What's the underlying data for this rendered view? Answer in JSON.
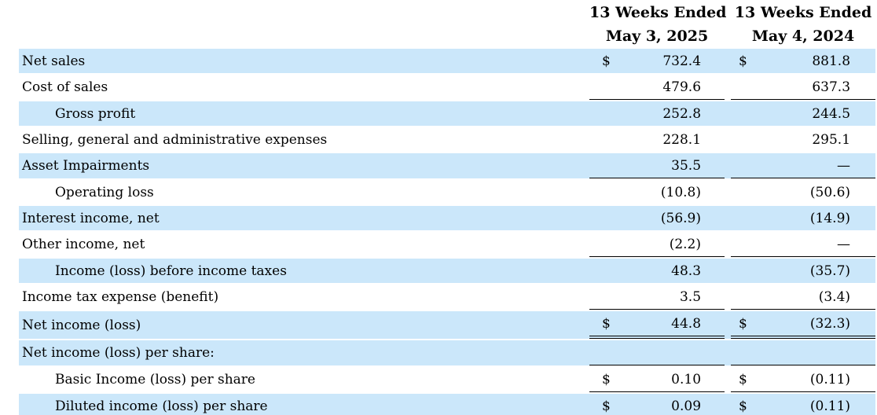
{
  "currency": "$",
  "colors": {
    "row_highlight": "#cbe7fa",
    "text": "#000000",
    "rule": "#000000"
  },
  "header": {
    "period1": {
      "line1": "13 Weeks Ended",
      "line2": "May 3, 2025"
    },
    "period2": {
      "line1": "13 Weeks Ended",
      "line2": "May 4, 2024"
    }
  },
  "rows": [
    {
      "label": "Net sales",
      "v2025": "732.4",
      "v2024": "881.8"
    },
    {
      "label": "Cost of sales",
      "v2025": "479.6",
      "v2024": "637.3"
    },
    {
      "label": "Gross profit",
      "v2025": "252.8",
      "v2024": "244.5"
    },
    {
      "label": "Selling, general and administrative expenses",
      "v2025": "228.1",
      "v2024": "295.1"
    },
    {
      "label": "Asset Impairments",
      "v2025": "35.5",
      "v2024": "—"
    },
    {
      "label": "Operating loss",
      "v2025": "(10.8)",
      "v2024": "(50.6)"
    },
    {
      "label": "Interest income, net",
      "v2025": "(56.9)",
      "v2024": "(14.9)"
    },
    {
      "label": "Other income, net",
      "v2025": "(2.2)",
      "v2024": "—"
    },
    {
      "label": "Income (loss) before income taxes",
      "v2025": "48.3",
      "v2024": "(35.7)"
    },
    {
      "label": "Income tax expense (benefit)",
      "v2025": "3.5",
      "v2024": "(3.4)"
    },
    {
      "label": "Net income (loss)",
      "v2025": "44.8",
      "v2024": "(32.3)"
    },
    {
      "label": "Net income (loss) per share:",
      "v2025": "",
      "v2024": ""
    },
    {
      "label": "Basic Income (loss) per share",
      "v2025": "0.10",
      "v2024": "(0.11)"
    },
    {
      "label": "Diluted income (loss) per share",
      "v2025": "0.09",
      "v2024": "(0.11)"
    }
  ]
}
